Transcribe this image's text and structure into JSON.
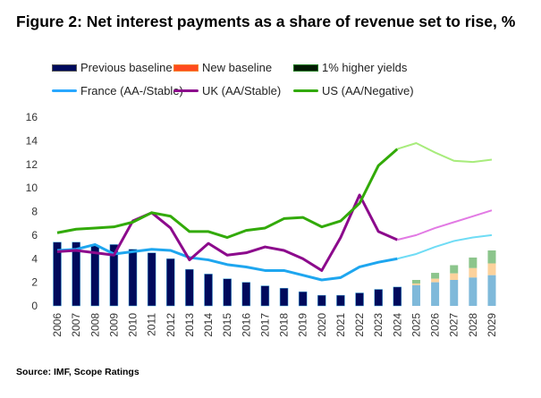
{
  "chart_data": {
    "type": "bar",
    "title": "Figure 2: Net interest payments as a share of revenue set to rise, %",
    "source": "Source: IMF, Scope Ratings",
    "xlabel": "",
    "ylabel": "",
    "ylim": [
      0,
      16
    ],
    "yticks": [
      "0",
      "2",
      "4",
      "6",
      "8",
      "10",
      "12",
      "14",
      "16"
    ],
    "categories": [
      "2006",
      "2007",
      "2008",
      "2009",
      "2010",
      "2011",
      "2012",
      "2013",
      "2014",
      "2015",
      "2016",
      "2017",
      "2018",
      "2019",
      "2020",
      "2021",
      "2022",
      "2023",
      "2024",
      "2025",
      "2026",
      "2027",
      "2028",
      "2029"
    ],
    "legend": {
      "previous_baseline": "Previous baseline",
      "new_baseline": "New baseline",
      "higher_yields": "1% higher yields",
      "france": "France (AA-/Stable)",
      "uk": "UK (AA/Stable)",
      "us": "US (AA/Negative)"
    },
    "bars": {
      "previous_baseline": [
        5.4,
        5.4,
        5.1,
        5.2,
        4.8,
        4.5,
        4.0,
        3.1,
        2.7,
        2.3,
        2.0,
        1.7,
        1.5,
        1.2,
        0.9,
        0.9,
        1.1,
        1.4,
        1.6,
        1.75,
        2.0,
        2.2,
        2.4,
        2.6
      ],
      "new_baseline_total": [
        null,
        null,
        null,
        null,
        null,
        null,
        null,
        null,
        null,
        null,
        null,
        null,
        null,
        null,
        null,
        null,
        null,
        null,
        null,
        1.9,
        2.3,
        2.75,
        3.2,
        3.6
      ],
      "higher_yields_total": [
        null,
        null,
        null,
        null,
        null,
        null,
        null,
        null,
        null,
        null,
        null,
        null,
        null,
        null,
        null,
        null,
        null,
        null,
        null,
        2.2,
        2.8,
        3.45,
        4.1,
        4.7
      ]
    },
    "series": [
      {
        "name": "France (AA-/Stable)",
        "values": [
          4.7,
          4.8,
          5.2,
          4.4,
          4.6,
          4.8,
          4.7,
          4.1,
          3.9,
          3.5,
          3.3,
          3.0,
          3.0,
          2.6,
          2.2,
          2.4,
          3.3,
          3.7,
          4.0,
          4.4,
          5.0,
          5.5,
          5.8,
          6.0
        ]
      },
      {
        "name": "UK (AA/Stable)",
        "values": [
          4.6,
          4.7,
          4.5,
          4.3,
          7.2,
          7.9,
          6.6,
          3.9,
          5.3,
          4.3,
          4.5,
          5.0,
          4.7,
          4.0,
          3.0,
          5.8,
          9.4,
          6.3,
          5.6,
          6.0,
          6.6,
          7.1,
          7.6,
          8.1
        ]
      },
      {
        "name": "US (AA/Negative)",
        "values": [
          6.2,
          6.5,
          6.6,
          6.7,
          7.1,
          7.9,
          7.6,
          6.3,
          6.3,
          5.8,
          6.4,
          6.6,
          7.4,
          7.5,
          6.7,
          7.2,
          8.7,
          11.9,
          13.3,
          13.8,
          13.0,
          12.3,
          12.2,
          12.4
        ]
      }
    ],
    "projection_start": "2025",
    "colors": {
      "previous_baseline": "#000a5c",
      "previous_projection": "#7fb9da",
      "new_baseline": "#fcd29c",
      "higher_yields": "#8cc58c",
      "france": "#1ea6ef",
      "france_proj": "#6fdcf5",
      "uk": "#8c0a8c",
      "uk_proj": "#e27ae4",
      "us": "#32aa08",
      "us_proj": "#a8ec7c"
    },
    "grid": false,
    "legend_position": "top"
  }
}
